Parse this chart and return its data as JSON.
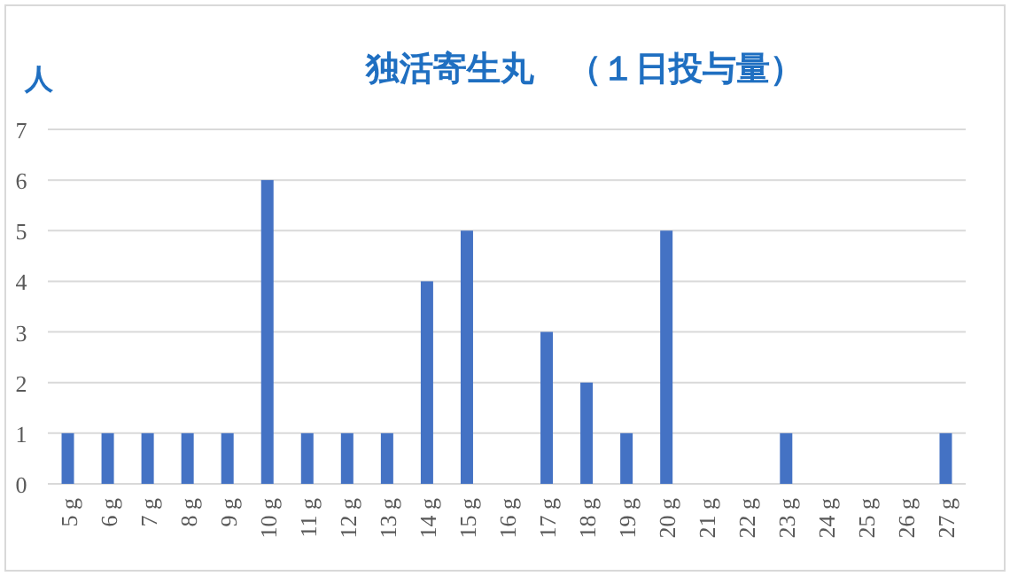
{
  "chart_data": {
    "type": "bar",
    "title": "独活寄生丸　（１日投与量）",
    "ylabel": "人",
    "categories": [
      "5 g",
      "6 g",
      "7 g",
      "8 g",
      "9 g",
      "10 g",
      "11 g",
      "12 g",
      "13 g",
      "14 g",
      "15 g",
      "16 g",
      "17 g",
      "18 g",
      "19 g",
      "20 g",
      "21 g",
      "22 g",
      "23 g",
      "24 g",
      "25 g",
      "26 g",
      "27 g"
    ],
    "values": [
      1,
      1,
      1,
      1,
      1,
      6,
      1,
      1,
      1,
      4,
      5,
      0,
      3,
      2,
      1,
      5,
      0,
      0,
      1,
      0,
      0,
      0,
      1
    ],
    "color": "#4472c4",
    "ylim": [
      0,
      7
    ],
    "yticks": [
      0,
      1,
      2,
      3,
      4,
      5,
      6,
      7
    ],
    "grid": "y"
  }
}
